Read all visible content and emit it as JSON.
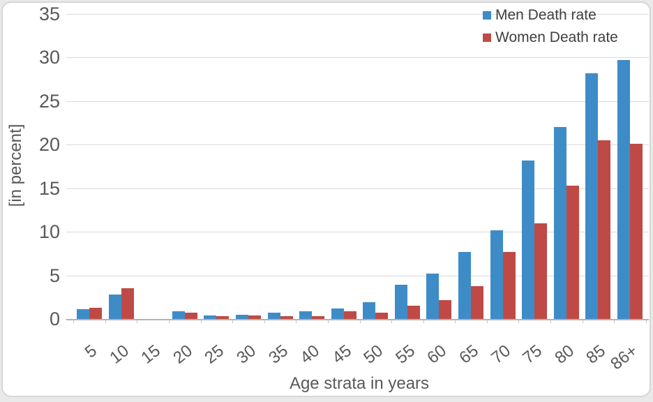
{
  "chart_data": {
    "type": "bar",
    "title": "",
    "xlabel": "Age strata in years",
    "ylabel": "[in percent]",
    "categories": [
      "5",
      "10",
      "15",
      "20",
      "25",
      "30",
      "35",
      "40",
      "45",
      "50",
      "55",
      "60",
      "65",
      "70",
      "75",
      "80",
      "85",
      "86+"
    ],
    "series": [
      {
        "name": "Men Death rate",
        "color": "#3e8cc7",
        "values": [
          1.1,
          2.8,
          0,
          0.9,
          0.4,
          0.5,
          0.7,
          0.9,
          1.2,
          1.9,
          3.9,
          5.2,
          7.7,
          10.2,
          18.2,
          22.0,
          28.2,
          29.7
        ]
      },
      {
        "name": "Women Death rate",
        "color": "#bf4a45",
        "values": [
          1.3,
          3.5,
          0,
          0.7,
          0.3,
          0.4,
          0.3,
          0.3,
          0.9,
          0.7,
          1.5,
          2.2,
          3.8,
          7.7,
          11.0,
          15.3,
          20.5,
          20.1
        ]
      }
    ],
    "ylim": [
      0,
      35
    ],
    "yticks": [
      0,
      5,
      10,
      15,
      20,
      25,
      30,
      35
    ],
    "grid": "horizontal-only",
    "legend_position": "top-right",
    "colors": {
      "gridline": "#d9d9d9",
      "axis_line": "#b3b3b3",
      "axis_text": "#595959",
      "legend_text": "#3f3f3f",
      "background": "#ffffff"
    }
  }
}
